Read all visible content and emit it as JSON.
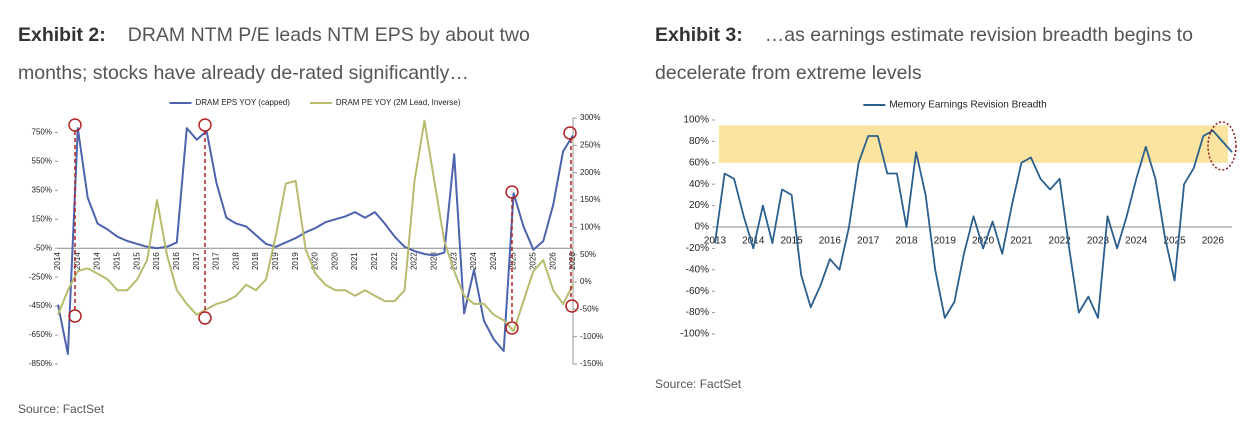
{
  "chart_data": [
    {
      "type": "line",
      "title_label": "Exhibit 2:",
      "title": "DRAM NTM P/E leads NTM EPS by about two months; stocks have already de-rated significantly…",
      "source": "Source: FactSet",
      "categories": [
        "2014",
        null,
        "2014",
        null,
        "2014",
        null,
        "2015",
        null,
        "2015",
        null,
        "2016",
        null,
        "2016",
        null,
        "2017",
        null,
        "2017",
        null,
        "2018",
        null,
        "2018",
        null,
        "2019",
        null,
        "2019",
        null,
        "2020",
        null,
        "2020",
        null,
        "2021",
        null,
        "2021",
        null,
        "2022",
        null,
        "2022",
        null,
        "2023",
        null,
        "2023",
        null,
        "2024",
        null,
        "2024",
        null,
        "2025",
        null,
        "2025",
        null,
        "2026",
        null,
        "2026"
      ],
      "series": [
        {
          "name": "DRAM EPS YOY (capped)",
          "color": "#4d63ad",
          "values": [
            -440,
            -780,
            780,
            300,
            120,
            80,
            30,
            0,
            -20,
            -40,
            -50,
            -40,
            -10,
            780,
            700,
            760,
            400,
            160,
            120,
            100,
            40,
            -20,
            -40,
            -10,
            20,
            60,
            90,
            130,
            150,
            170,
            200,
            160,
            200,
            120,
            30,
            -40,
            -70,
            -90,
            -100,
            -80,
            600,
            -500,
            -200,
            -550,
            -680,
            -760,
            330,
            100,
            -60,
            0,
            250,
            620,
            730
          ]
        },
        {
          "name": "DRAM PE YOY (2M Lead, Inverse)",
          "color": "#b8bb6e",
          "axis": "y2",
          "values": [
            -60,
            -15,
            20,
            25,
            15,
            5,
            -15,
            -15,
            5,
            40,
            150,
            50,
            -15,
            -40,
            -60,
            -50,
            -40,
            -35,
            -25,
            -5,
            -15,
            5,
            85,
            180,
            185,
            60,
            15,
            -5,
            -15,
            -15,
            -25,
            -15,
            -25,
            -35,
            -35,
            -15,
            185,
            295,
            185,
            75,
            20,
            -25,
            -40,
            -40,
            -60,
            -70,
            -90,
            -35,
            20,
            40,
            -15,
            -40,
            -5
          ]
        }
      ],
      "ylim": [
        -850,
        850
      ],
      "yticks": [
        {
          "value": 750,
          "label": "750%"
        },
        {
          "value": 550,
          "label": "550%"
        },
        {
          "value": 350,
          "label": "350%"
        },
        {
          "value": 150,
          "label": "150%"
        },
        {
          "value": -50,
          "label": "-50%"
        },
        {
          "value": -250,
          "label": "-250%"
        },
        {
          "value": -450,
          "label": "-450%"
        },
        {
          "value": -650,
          "label": "-650%"
        },
        {
          "value": -850,
          "label": "-850%"
        }
      ],
      "y2lim": [
        -150,
        300
      ],
      "y2ticks": [
        {
          "value": 300,
          "label": "300%"
        },
        {
          "value": 250,
          "label": "250%"
        },
        {
          "value": 200,
          "label": "200%"
        },
        {
          "value": 150,
          "label": "150%"
        },
        {
          "value": 100,
          "label": "100%"
        },
        {
          "value": 50,
          "label": "50%"
        },
        {
          "value": 0,
          "label": "0%"
        },
        {
          "value": -50,
          "label": "-50%"
        },
        {
          "value": -100,
          "label": "-100%"
        },
        {
          "value": -150,
          "label": "-150%"
        }
      ],
      "xaxis_cross": -50,
      "rotate_x_labels": true,
      "legend": "top"
    },
    {
      "type": "line",
      "title_label": "Exhibit 3:",
      "title": "…as earnings estimate revision breadth begins to decelerate from extreme levels",
      "source": "Source: FactSet",
      "categories": [
        "2013",
        null,
        null,
        null,
        "2014",
        null,
        null,
        null,
        "2015",
        null,
        null,
        null,
        "2016",
        null,
        null,
        null,
        "2017",
        null,
        null,
        null,
        "2018",
        null,
        null,
        null,
        "2019",
        null,
        null,
        null,
        "2020",
        null,
        null,
        null,
        "2021",
        null,
        null,
        null,
        "2022",
        null,
        null,
        null,
        "2023",
        null,
        null,
        null,
        "2024",
        null,
        null,
        null,
        "2025",
        null,
        null,
        null,
        "2026",
        null,
        null
      ],
      "series": [
        {
          "name": "Memory Earnings Revision Breadth",
          "color": "#2b5f8e",
          "values": [
            -15,
            50,
            45,
            10,
            -20,
            20,
            -15,
            35,
            30,
            -45,
            -75,
            -55,
            -30,
            -40,
            0,
            60,
            85,
            85,
            50,
            50,
            0,
            70,
            30,
            -40,
            -85,
            -70,
            -25,
            10,
            -20,
            5,
            -25,
            20,
            60,
            65,
            45,
            35,
            45,
            -20,
            -80,
            -65,
            -85,
            10,
            -20,
            10,
            45,
            75,
            45,
            -10,
            -50,
            40,
            55,
            85,
            90,
            80,
            70
          ]
        }
      ],
      "ylim": [
        -100,
        100
      ],
      "yticks": [
        {
          "value": 100,
          "label": "100%"
        },
        {
          "value": 80,
          "label": "80%"
        },
        {
          "value": 60,
          "label": "60%"
        },
        {
          "value": 40,
          "label": "40%"
        },
        {
          "value": 20,
          "label": "20%"
        },
        {
          "value": 0,
          "label": "0%"
        },
        {
          "value": -20,
          "label": "-20%"
        },
        {
          "value": -40,
          "label": "-40%"
        },
        {
          "value": -60,
          "label": "-60%"
        },
        {
          "value": -80,
          "label": "-80%"
        },
        {
          "value": -100,
          "label": "-100%"
        }
      ],
      "band": [
        60,
        95
      ],
      "band_color": "#fbe3a0",
      "xaxis_cross": 0,
      "rotate_x_labels": false,
      "legend": "top"
    }
  ]
}
